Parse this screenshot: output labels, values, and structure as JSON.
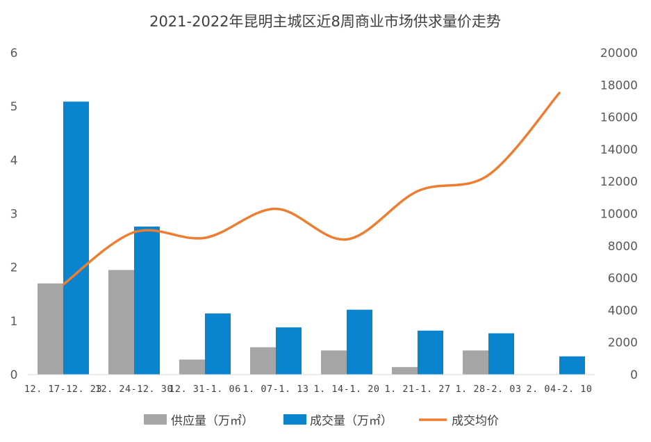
{
  "chart_data": {
    "type": "bar",
    "title": "2021-2022年昆明主城区近8周商业市场供求量价走势",
    "categories": [
      "12.17-12.23",
      "12.24-12.30",
      "12.31-1.06",
      "1.07-1.13",
      "1.14-1.20",
      "1.21-1.27",
      "1.28-2.03",
      "2.04-2.10"
    ],
    "category_labels": [
      "12. 17-12. 23",
      "12. 24-12. 30",
      "12. 31-1. 06",
      "1. 07-1. 13",
      "1. 14-1. 20",
      "1. 21-1. 27",
      "1. 28-2. 03",
      "2. 04-2. 10"
    ],
    "y_left": {
      "min": 0,
      "max": 6,
      "ticks": [
        "0",
        "1",
        "2",
        "3",
        "4",
        "5",
        "6"
      ]
    },
    "y_right": {
      "min": 0,
      "max": 20000,
      "ticks": [
        "0",
        "2000",
        "4000",
        "6000",
        "8000",
        "10000",
        "12000",
        "14000",
        "16000",
        "18000",
        "20000"
      ]
    },
    "grid": false,
    "legend_position": "bottom",
    "series": [
      {
        "name": "供应量（万㎡）",
        "type": "bar",
        "axis": "left",
        "color": "#a5a5a5",
        "values": [
          1.7,
          1.95,
          0.28,
          0.51,
          0.45,
          0.14,
          0.45,
          0
        ]
      },
      {
        "name": "成交量（万㎡）",
        "type": "bar",
        "axis": "left",
        "color": "#0b84cf",
        "values": [
          5.09,
          2.76,
          1.14,
          0.88,
          1.21,
          0.82,
          0.77,
          0.34
        ]
      },
      {
        "name": "成交均价",
        "type": "line",
        "axis": "right",
        "color": "#ed7d31",
        "values": [
          5600,
          8850,
          8500,
          10300,
          8400,
          11400,
          12400,
          17500
        ]
      }
    ]
  }
}
